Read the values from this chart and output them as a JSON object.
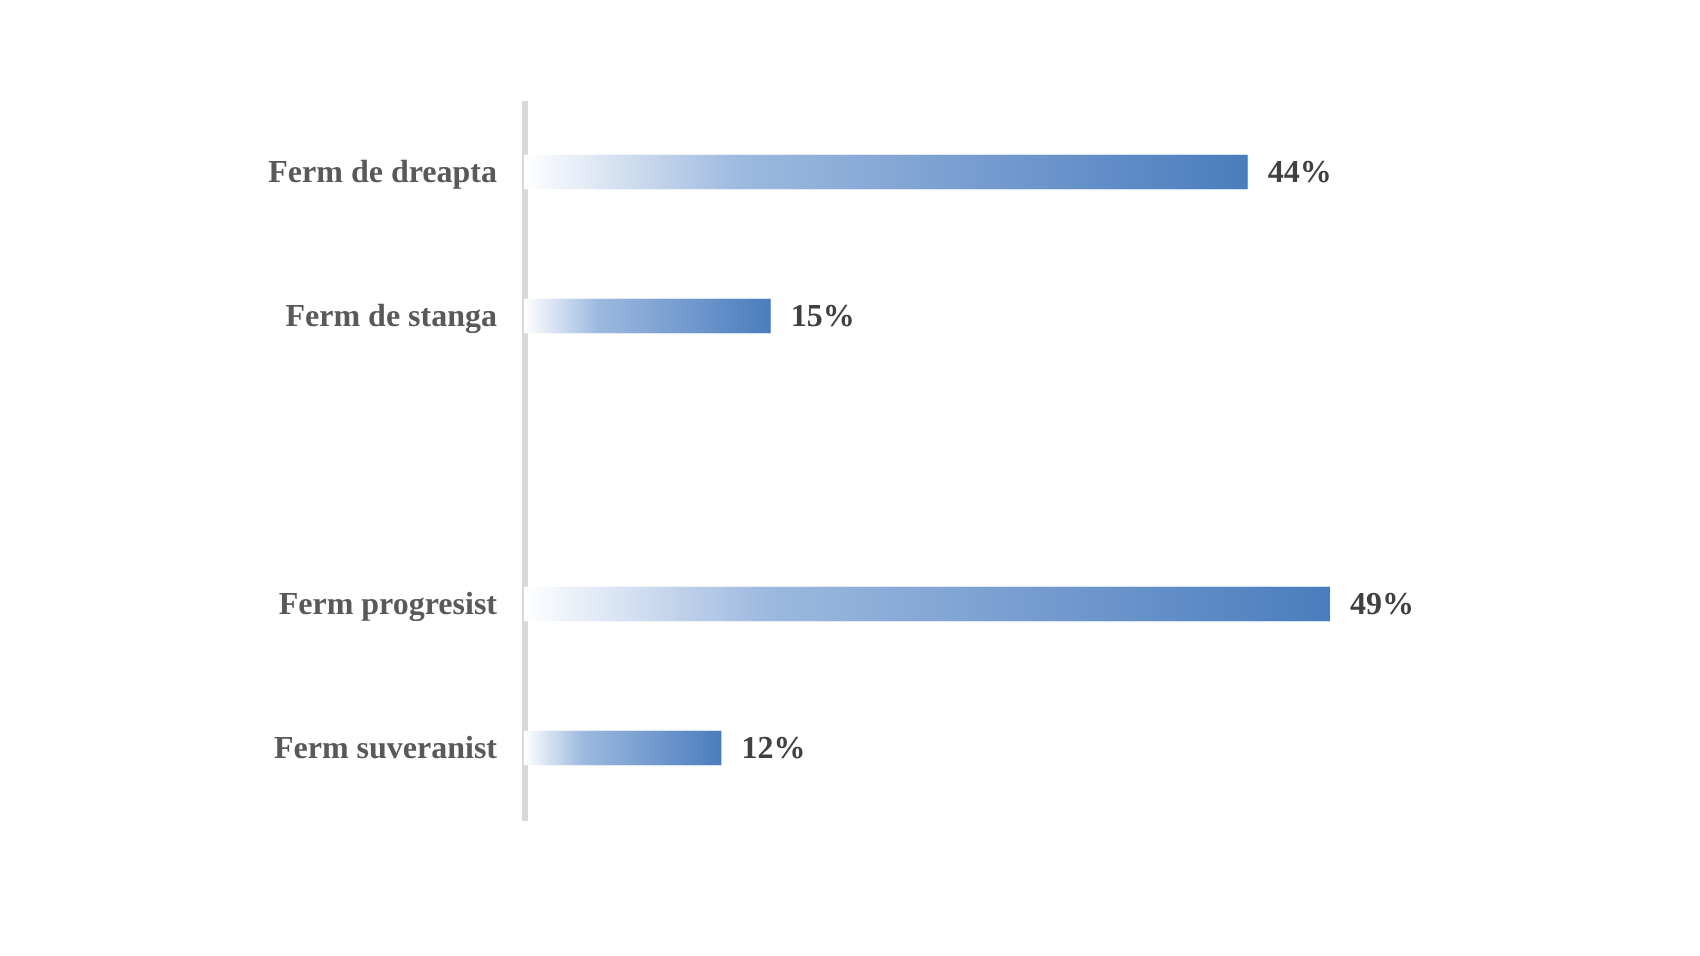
{
  "chart_data": {
    "type": "bar",
    "orientation": "horizontal",
    "categories": [
      "Ferm de dreapta",
      "Ferm de stanga",
      null,
      "Ferm progresist",
      "Ferm suveranist"
    ],
    "values": [
      44,
      15,
      null,
      49,
      12
    ],
    "value_labels": [
      "44%",
      "15%",
      null,
      "49%",
      "12%"
    ],
    "color": "#4a7dbe"
  }
}
